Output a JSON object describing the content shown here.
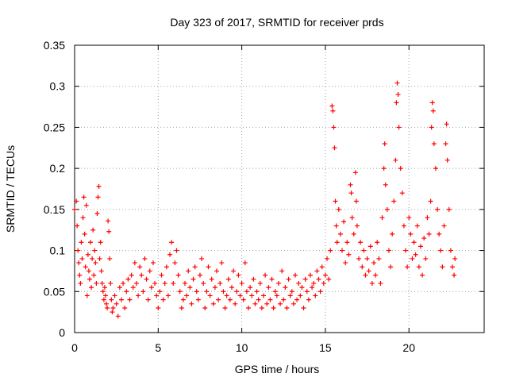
{
  "chart_data": {
    "type": "scatter",
    "title": "Day 323 of 2017, SRMTID for receiver prds",
    "xlabel": "GPS time / hours",
    "ylabel": "SRMTID / TECUs",
    "xlim": [
      0,
      24.5
    ],
    "ylim": [
      0,
      0.35
    ],
    "x_ticks": [
      0,
      5,
      10,
      15,
      20
    ],
    "x_tick_labels": [
      "0",
      "5",
      "10",
      "15",
      "20"
    ],
    "y_ticks": [
      0,
      0.05,
      0.1,
      0.15,
      0.2,
      0.25,
      0.3,
      0.35
    ],
    "y_tick_labels": [
      "0",
      "0.05",
      "0.1",
      "0.15",
      "0.2",
      "0.25",
      "0.3",
      "0.35"
    ],
    "grid": true,
    "marker": "plus",
    "series_color": "#ff0000",
    "series": [
      {
        "name": "SRMTID",
        "points": [
          [
            0.0,
            0.15
          ],
          [
            0.1,
            0.16
          ],
          [
            0.15,
            0.13
          ],
          [
            0.2,
            0.1
          ],
          [
            0.25,
            0.085
          ],
          [
            0.3,
            0.07
          ],
          [
            0.35,
            0.06
          ],
          [
            0.4,
            0.11
          ],
          [
            0.45,
            0.09
          ],
          [
            0.5,
            0.14
          ],
          [
            0.55,
            0.165
          ],
          [
            0.6,
            0.12
          ],
          [
            0.65,
            0.08
          ],
          [
            0.7,
            0.155
          ],
          [
            0.75,
            0.045
          ],
          [
            0.8,
            0.095
          ],
          [
            0.85,
            0.075
          ],
          [
            0.9,
            0.065
          ],
          [
            0.95,
            0.11
          ],
          [
            1.0,
            0.055
          ],
          [
            1.05,
            0.09
          ],
          [
            1.1,
            0.125
          ],
          [
            1.15,
            0.07
          ],
          [
            1.2,
            0.1
          ],
          [
            1.25,
            0.085
          ],
          [
            1.3,
            0.06
          ],
          [
            1.35,
            0.145
          ],
          [
            1.4,
            0.165
          ],
          [
            1.45,
            0.178
          ],
          [
            1.5,
            0.09
          ],
          [
            1.55,
            0.11
          ],
          [
            1.6,
            0.075
          ],
          [
            1.65,
            0.06
          ],
          [
            1.7,
            0.05
          ],
          [
            1.75,
            0.04
          ],
          [
            1.8,
            0.055
          ],
          [
            1.85,
            0.045
          ],
          [
            1.9,
            0.035
          ],
          [
            1.95,
            0.03
          ],
          [
            2.0,
            0.136
          ],
          [
            2.05,
            0.123
          ],
          [
            2.1,
            0.09
          ],
          [
            2.15,
            0.06
          ],
          [
            2.2,
            0.04
          ],
          [
            2.25,
            0.025
          ],
          [
            2.3,
            0.03
          ],
          [
            2.4,
            0.045
          ],
          [
            2.5,
            0.035
          ],
          [
            2.6,
            0.02
          ],
          [
            2.7,
            0.055
          ],
          [
            2.8,
            0.04
          ],
          [
            2.9,
            0.06
          ],
          [
            3.0,
            0.03
          ],
          [
            3.1,
            0.05
          ],
          [
            3.2,
            0.065
          ],
          [
            3.3,
            0.04
          ],
          [
            3.4,
            0.07
          ],
          [
            3.5,
            0.055
          ],
          [
            3.6,
            0.085
          ],
          [
            3.7,
            0.06
          ],
          [
            3.8,
            0.045
          ],
          [
            3.9,
            0.08
          ],
          [
            4.0,
            0.07
          ],
          [
            4.1,
            0.05
          ],
          [
            4.2,
            0.09
          ],
          [
            4.3,
            0.065
          ],
          [
            4.4,
            0.04
          ],
          [
            4.5,
            0.075
          ],
          [
            4.6,
            0.055
          ],
          [
            4.7,
            0.085
          ],
          [
            4.8,
            0.06
          ],
          [
            4.9,
            0.045
          ],
          [
            5.0,
            0.03
          ],
          [
            5.1,
            0.05
          ],
          [
            5.2,
            0.07
          ],
          [
            5.3,
            0.04
          ],
          [
            5.4,
            0.06
          ],
          [
            5.5,
            0.08
          ],
          [
            5.6,
            0.045
          ],
          [
            5.7,
            0.095
          ],
          [
            5.8,
            0.11
          ],
          [
            5.9,
            0.06
          ],
          [
            6.0,
            0.085
          ],
          [
            6.1,
            0.1
          ],
          [
            6.2,
            0.07
          ],
          [
            6.3,
            0.05
          ],
          [
            6.4,
            0.03
          ],
          [
            6.5,
            0.04
          ],
          [
            6.6,
            0.06
          ],
          [
            6.7,
            0.045
          ],
          [
            6.8,
            0.075
          ],
          [
            6.9,
            0.055
          ],
          [
            7.0,
            0.035
          ],
          [
            7.1,
            0.065
          ],
          [
            7.2,
            0.08
          ],
          [
            7.3,
            0.05
          ],
          [
            7.4,
            0.04
          ],
          [
            7.5,
            0.07
          ],
          [
            7.6,
            0.09
          ],
          [
            7.7,
            0.06
          ],
          [
            7.8,
            0.03
          ],
          [
            7.9,
            0.05
          ],
          [
            8.0,
            0.08
          ],
          [
            8.1,
            0.045
          ],
          [
            8.2,
            0.065
          ],
          [
            8.3,
            0.035
          ],
          [
            8.4,
            0.055
          ],
          [
            8.5,
            0.075
          ],
          [
            8.6,
            0.04
          ],
          [
            8.7,
            0.06
          ],
          [
            8.8,
            0.085
          ],
          [
            8.9,
            0.05
          ],
          [
            9.0,
            0.03
          ],
          [
            9.1,
            0.045
          ],
          [
            9.2,
            0.065
          ],
          [
            9.3,
            0.04
          ],
          [
            9.4,
            0.055
          ],
          [
            9.5,
            0.075
          ],
          [
            9.6,
            0.035
          ],
          [
            9.7,
            0.05
          ],
          [
            9.8,
            0.07
          ],
          [
            9.9,
            0.045
          ],
          [
            10.0,
            0.06
          ],
          [
            10.1,
            0.04
          ],
          [
            10.2,
            0.085
          ],
          [
            10.3,
            0.05
          ],
          [
            10.4,
            0.03
          ],
          [
            10.5,
            0.055
          ],
          [
            10.6,
            0.045
          ],
          [
            10.7,
            0.065
          ],
          [
            10.8,
            0.035
          ],
          [
            10.9,
            0.05
          ],
          [
            11.0,
            0.04
          ],
          [
            11.1,
            0.06
          ],
          [
            11.2,
            0.03
          ],
          [
            11.3,
            0.045
          ],
          [
            11.4,
            0.07
          ],
          [
            11.5,
            0.035
          ],
          [
            11.6,
            0.055
          ],
          [
            11.7,
            0.04
          ],
          [
            11.8,
            0.065
          ],
          [
            11.9,
            0.03
          ],
          [
            12.0,
            0.05
          ],
          [
            12.1,
            0.045
          ],
          [
            12.2,
            0.06
          ],
          [
            12.3,
            0.035
          ],
          [
            12.4,
            0.075
          ],
          [
            12.5,
            0.04
          ],
          [
            12.6,
            0.055
          ],
          [
            12.7,
            0.03
          ],
          [
            12.8,
            0.065
          ],
          [
            12.9,
            0.045
          ],
          [
            13.0,
            0.05
          ],
          [
            13.1,
            0.035
          ],
          [
            13.2,
            0.07
          ],
          [
            13.3,
            0.04
          ],
          [
            13.4,
            0.06
          ],
          [
            13.5,
            0.045
          ],
          [
            13.6,
            0.055
          ],
          [
            13.7,
            0.03
          ],
          [
            13.8,
            0.065
          ],
          [
            13.9,
            0.05
          ],
          [
            14.0,
            0.04
          ],
          [
            14.1,
            0.07
          ],
          [
            14.2,
            0.055
          ],
          [
            14.3,
            0.06
          ],
          [
            14.4,
            0.045
          ],
          [
            14.5,
            0.075
          ],
          [
            14.6,
            0.065
          ],
          [
            14.7,
            0.05
          ],
          [
            14.8,
            0.08
          ],
          [
            14.9,
            0.06
          ],
          [
            15.0,
            0.07
          ],
          [
            15.1,
            0.09
          ],
          [
            15.2,
            0.065
          ],
          [
            15.3,
            0.1
          ],
          [
            15.4,
            0.276
          ],
          [
            15.45,
            0.27
          ],
          [
            15.5,
            0.25
          ],
          [
            15.55,
            0.225
          ],
          [
            15.6,
            0.16
          ],
          [
            15.65,
            0.13
          ],
          [
            15.7,
            0.11
          ],
          [
            15.8,
            0.15
          ],
          [
            15.9,
            0.12
          ],
          [
            16.0,
            0.1
          ],
          [
            16.1,
            0.135
          ],
          [
            16.2,
            0.085
          ],
          [
            16.3,
            0.11
          ],
          [
            16.4,
            0.095
          ],
          [
            16.5,
            0.18
          ],
          [
            16.55,
            0.17
          ],
          [
            16.6,
            0.14
          ],
          [
            16.7,
            0.12
          ],
          [
            16.8,
            0.195
          ],
          [
            16.85,
            0.16
          ],
          [
            16.9,
            0.13
          ],
          [
            17.0,
            0.09
          ],
          [
            17.1,
            0.11
          ],
          [
            17.2,
            0.08
          ],
          [
            17.3,
            0.1
          ],
          [
            17.4,
            0.07
          ],
          [
            17.5,
            0.09
          ],
          [
            17.6,
            0.075
          ],
          [
            17.7,
            0.105
          ],
          [
            17.8,
            0.06
          ],
          [
            17.9,
            0.085
          ],
          [
            18.0,
            0.07
          ],
          [
            18.1,
            0.11
          ],
          [
            18.2,
            0.09
          ],
          [
            18.3,
            0.06
          ],
          [
            18.4,
            0.14
          ],
          [
            18.5,
            0.2
          ],
          [
            18.55,
            0.23
          ],
          [
            18.6,
            0.18
          ],
          [
            18.7,
            0.15
          ],
          [
            18.8,
            0.1
          ],
          [
            18.9,
            0.08
          ],
          [
            19.0,
            0.12
          ],
          [
            19.1,
            0.16
          ],
          [
            19.2,
            0.21
          ],
          [
            19.25,
            0.28
          ],
          [
            19.3,
            0.304
          ],
          [
            19.35,
            0.29
          ],
          [
            19.4,
            0.25
          ],
          [
            19.5,
            0.2
          ],
          [
            19.6,
            0.17
          ],
          [
            19.7,
            0.13
          ],
          [
            19.8,
            0.1
          ],
          [
            19.9,
            0.08
          ],
          [
            20.0,
            0.14
          ],
          [
            20.1,
            0.12
          ],
          [
            20.2,
            0.09
          ],
          [
            20.3,
            0.11
          ],
          [
            20.4,
            0.095
          ],
          [
            20.5,
            0.13
          ],
          [
            20.6,
            0.08
          ],
          [
            20.7,
            0.105
          ],
          [
            20.8,
            0.07
          ],
          [
            20.9,
            0.115
          ],
          [
            21.0,
            0.09
          ],
          [
            21.1,
            0.14
          ],
          [
            21.2,
            0.12
          ],
          [
            21.3,
            0.16
          ],
          [
            21.35,
            0.25
          ],
          [
            21.4,
            0.28
          ],
          [
            21.45,
            0.27
          ],
          [
            21.5,
            0.23
          ],
          [
            21.6,
            0.2
          ],
          [
            21.7,
            0.15
          ],
          [
            21.8,
            0.12
          ],
          [
            21.9,
            0.1
          ],
          [
            22.0,
            0.08
          ],
          [
            22.1,
            0.13
          ],
          [
            22.2,
            0.23
          ],
          [
            22.25,
            0.254
          ],
          [
            22.3,
            0.21
          ],
          [
            22.4,
            0.15
          ],
          [
            22.5,
            0.1
          ],
          [
            22.6,
            0.08
          ],
          [
            22.7,
            0.07
          ],
          [
            22.75,
            0.09
          ]
        ]
      }
    ]
  }
}
